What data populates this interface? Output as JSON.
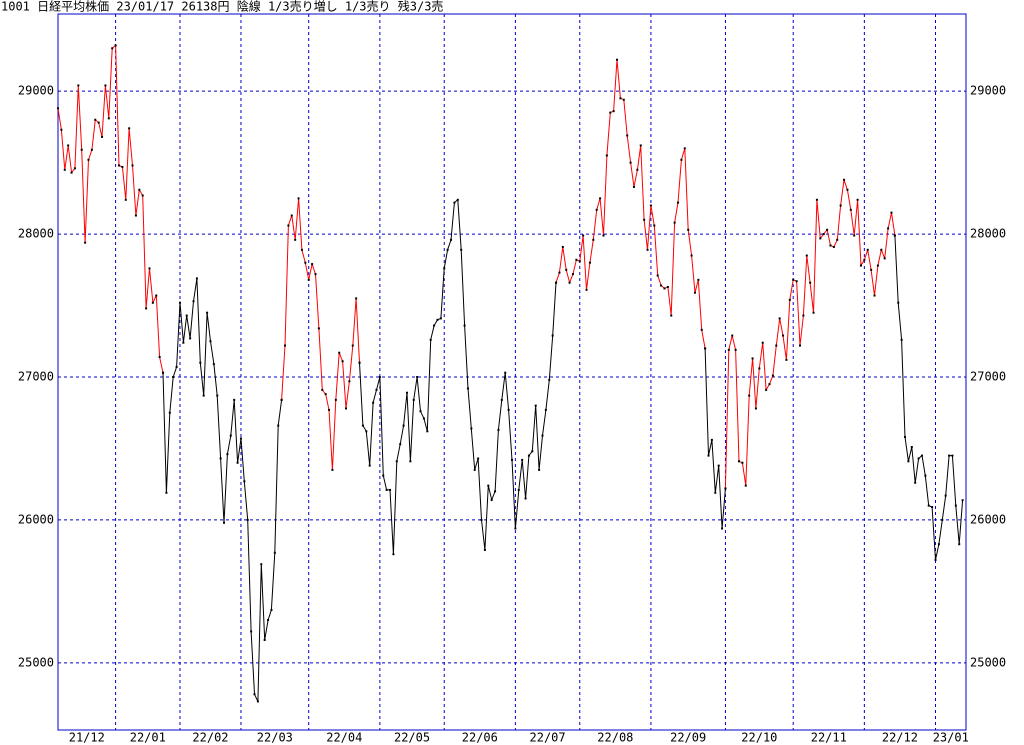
{
  "chart_data": {
    "type": "line",
    "title": "1001 日経平均株価 23/01/17 26138円 陰線 1/3売り増し 1/3売り 残3/3売",
    "xlim": [
      0,
      268
    ],
    "xticks": [
      {
        "value": 0,
        "label": "21/12"
      },
      {
        "value": 17,
        "label": "22/01"
      },
      {
        "value": 36,
        "label": "22/02"
      },
      {
        "value": 54,
        "label": "22/03"
      },
      {
        "value": 74,
        "label": "22/04"
      },
      {
        "value": 95,
        "label": "22/05"
      },
      {
        "value": 114,
        "label": "22/06"
      },
      {
        "value": 135,
        "label": "22/07"
      },
      {
        "value": 154,
        "label": "22/08"
      },
      {
        "value": 175,
        "label": "22/09"
      },
      {
        "value": 197,
        "label": "22/10"
      },
      {
        "value": 217,
        "label": "22/11"
      },
      {
        "value": 238,
        "label": "22/12"
      },
      {
        "value": 259,
        "label": "23/01"
      }
    ],
    "ylim": [
      24530,
      29540
    ],
    "yticks": [
      25000,
      26000,
      27000,
      28000,
      29000
    ],
    "grid": true,
    "series": [
      {
        "color": "#ff0000",
        "values": [
          28880,
          28730,
          28450,
          28620,
          28430,
          28460,
          29040,
          28590,
          27940,
          28520,
          28590,
          28800,
          28780,
          28680,
          29040,
          28810,
          29300,
          29320,
          28480,
          28470,
          28240,
          28740,
          28480,
          28130,
          28310,
          28270,
          27480,
          27760,
          27520,
          27570,
          27140,
          27030,
          null,
          null,
          null,
          null,
          null,
          null,
          null,
          null,
          null,
          null,
          null,
          null,
          null,
          null,
          null,
          null,
          null,
          null,
          null,
          null,
          null,
          null,
          null,
          null,
          null,
          null,
          null,
          null,
          null,
          null,
          null,
          null,
          null,
          null,
          26840,
          27220,
          28060,
          28130,
          27960,
          28250,
          27890,
          27800,
          27680,
          27790,
          27720,
          27340,
          26910,
          26880,
          26770,
          26350,
          26840,
          27170,
          27110,
          26780,
          26970,
          27220,
          27550,
          27100,
          null,
          null,
          null,
          null,
          null,
          null,
          null,
          null,
          null,
          null,
          null,
          null,
          null,
          null,
          null,
          null,
          null,
          null,
          null,
          null,
          null,
          null,
          null,
          null,
          null,
          null,
          null,
          null,
          null,
          null,
          null,
          null,
          null,
          null,
          null,
          null,
          null,
          null,
          null,
          null,
          null,
          null,
          null,
          null,
          null,
          null,
          null,
          null,
          null,
          null,
          null,
          null,
          null,
          null,
          null,
          null,
          null,
          27660,
          27730,
          27910,
          27750,
          27660,
          27720,
          27820,
          27810,
          27990,
          27610,
          27800,
          27960,
          28170,
          28250,
          27990,
          28550,
          28850,
          28860,
          29220,
          28950,
          28940,
          28690,
          28500,
          28330,
          28450,
          28620,
          28100,
          27890,
          28200,
          28060,
          27710,
          27640,
          27620,
          27630,
          27430,
          28080,
          28220,
          28520,
          28600,
          28030,
          27850,
          27590,
          27680,
          27330,
          27200,
          null,
          null,
          null,
          null,
          null,
          26220,
          27190,
          27290,
          27190,
          26410,
          26400,
          26240,
          26870,
          27130,
          26780,
          27060,
          27240,
          26910,
          26950,
          27010,
          27220,
          27410,
          27290,
          27120,
          27540,
          27680,
          27670,
          27220,
          27430,
          27850,
          27660,
          27450,
          28240,
          27970,
          28000,
          28030,
          27920,
          27910,
          27960,
          28200,
          28380,
          28310,
          28170,
          27990,
          28240,
          27780,
          27820,
          27890,
          27750,
          27570,
          27780,
          27890,
          27830,
          28040,
          28150,
          27990,
          null,
          null,
          null,
          null,
          null,
          null,
          null,
          null,
          null,
          null,
          null,
          null,
          null,
          null,
          null,
          null,
          null,
          null,
          null,
          null
        ]
      },
      {
        "color": "#000000",
        "values": [
          null,
          null,
          null,
          null,
          null,
          null,
          null,
          null,
          null,
          null,
          null,
          null,
          null,
          null,
          null,
          null,
          null,
          null,
          null,
          null,
          null,
          null,
          null,
          null,
          null,
          null,
          null,
          null,
          null,
          null,
          null,
          27030,
          26190,
          26750,
          27000,
          27070,
          27520,
          27240,
          27430,
          27270,
          27530,
          27690,
          27100,
          26870,
          27450,
          27250,
          27090,
          26870,
          26430,
          25980,
          26460,
          26590,
          26840,
          26400,
          26570,
          26270,
          26000,
          25220,
          24780,
          24730,
          25690,
          25160,
          25300,
          25370,
          25770,
          26660,
          26840,
          null,
          null,
          null,
          null,
          null,
          null,
          null,
          null,
          null,
          null,
          null,
          null,
          null,
          null,
          null,
          null,
          null,
          null,
          null,
          null,
          null,
          null,
          27100,
          26660,
          26620,
          26380,
          26820,
          26910,
          27000,
          26310,
          26210,
          26210,
          25760,
          26410,
          26530,
          26660,
          26890,
          26410,
          26840,
          27000,
          26760,
          26710,
          26620,
          27260,
          27360,
          27400,
          27410,
          27760,
          27890,
          27960,
          28220,
          28240,
          27890,
          27360,
          26920,
          26640,
          26350,
          26430,
          26000,
          25790,
          26240,
          26140,
          26200,
          26630,
          26840,
          27030,
          26770,
          26420,
          25940,
          26210,
          26420,
          26150,
          26450,
          26480,
          26800,
          26350,
          26590,
          26770,
          26980,
          27290,
          27660,
          null,
          null,
          null,
          null,
          null,
          null,
          null,
          null,
          null,
          null,
          null,
          null,
          null,
          null,
          null,
          null,
          null,
          null,
          null,
          null,
          null,
          null,
          null,
          null,
          null,
          null,
          null,
          null,
          null,
          null,
          null,
          null,
          null,
          null,
          null,
          null,
          null,
          null,
          null,
          null,
          null,
          null,
          null,
          27200,
          26450,
          26560,
          26190,
          26380,
          25940,
          26220,
          null,
          null,
          null,
          null,
          null,
          null,
          null,
          null,
          null,
          null,
          null,
          null,
          null,
          null,
          null,
          null,
          null,
          null,
          null,
          null,
          null,
          null,
          null,
          null,
          null,
          null,
          null,
          null,
          null,
          null,
          null,
          null,
          null,
          null,
          null,
          null,
          null,
          null,
          null,
          null,
          null,
          null,
          null,
          null,
          null,
          null,
          null,
          null,
          null,
          27990,
          27520,
          27260,
          26580,
          26410,
          26510,
          26260,
          26430,
          26450,
          26310,
          26100,
          26090,
          25720,
          25830,
          26000,
          26170,
          26450,
          26450,
          26100,
          25830,
          26138
        ]
      }
    ]
  }
}
